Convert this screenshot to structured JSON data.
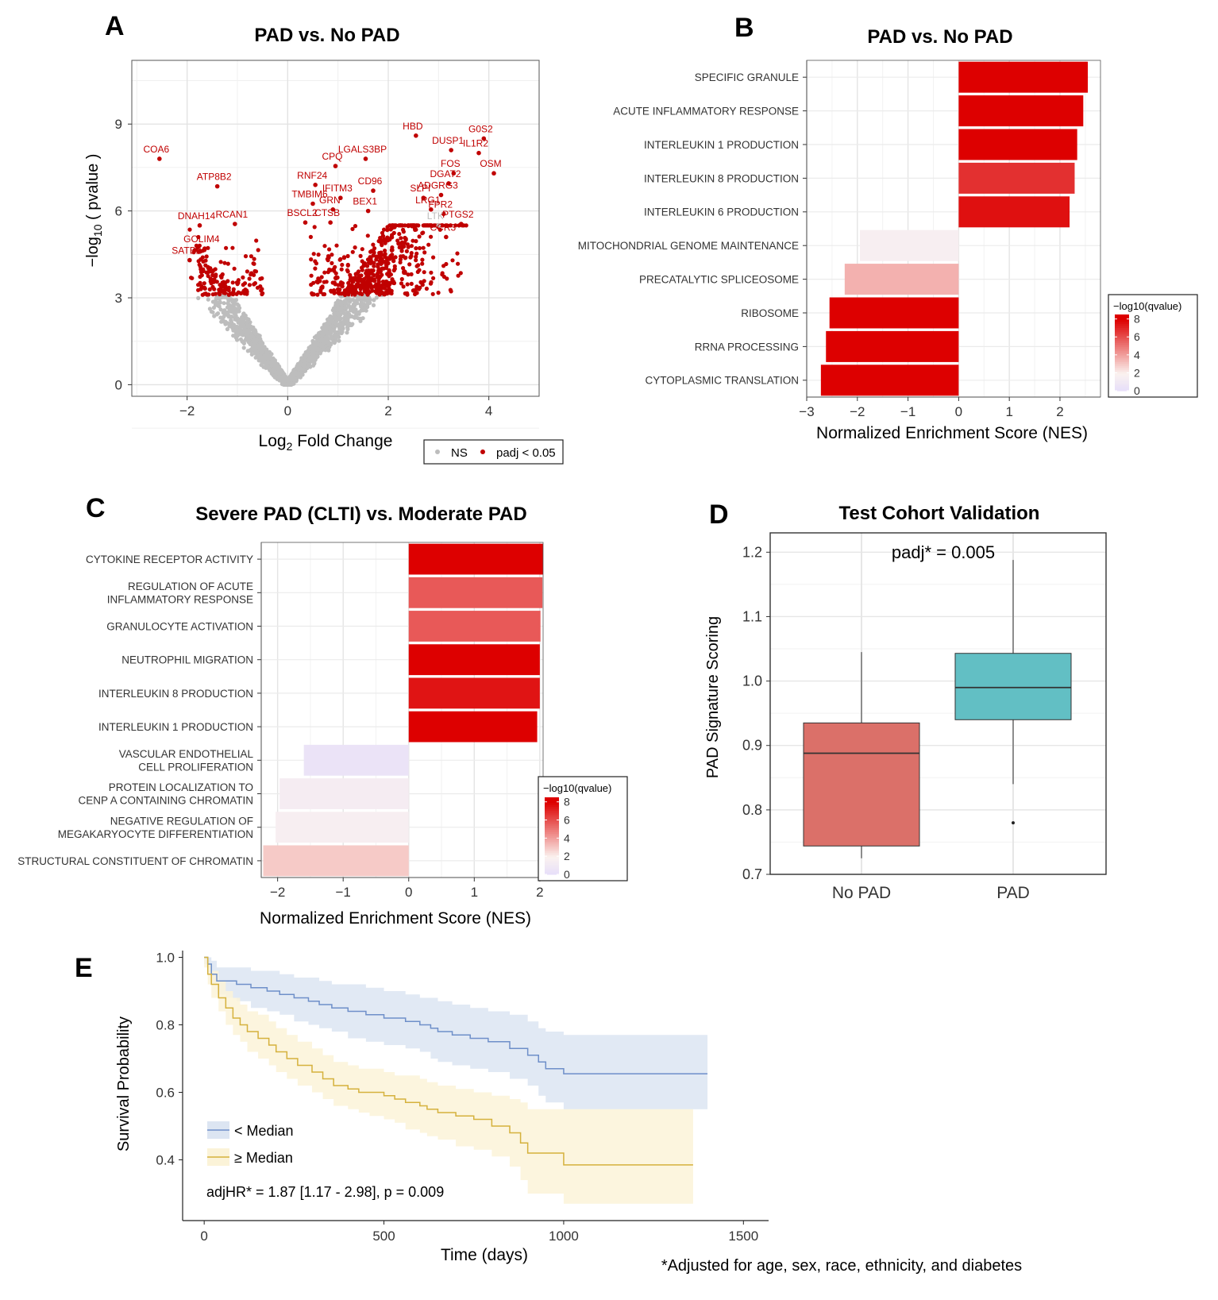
{
  "panels": {
    "A": {
      "letter": "A",
      "chart_data": {
        "type": "scatter",
        "title": "PAD vs. No PAD",
        "xlabel": "Log2 Fold Change",
        "ylabel": "−log10 ( pvalue )",
        "xlim": [
          -3.1,
          5.0
        ],
        "ylim": [
          -0.4,
          11.2
        ],
        "xticks": [
          -2,
          0,
          2,
          4
        ],
        "yticks": [
          0,
          3,
          6,
          9
        ],
        "legend": [
          "NS",
          "padj < 0.05"
        ],
        "colors": {
          "ns": "#bdbdbd",
          "sig": "#c00000"
        },
        "labeled_genes": [
          {
            "gene": "HBD",
            "x": 2.55,
            "y": 8.6
          },
          {
            "gene": "G0S2",
            "x": 3.9,
            "y": 8.5
          },
          {
            "gene": "COA6",
            "x": -2.55,
            "y": 7.8
          },
          {
            "gene": "LGALS3BP",
            "x": 1.55,
            "y": 7.8
          },
          {
            "gene": "DUSP1",
            "x": 3.25,
            "y": 8.1
          },
          {
            "gene": "IL1R2",
            "x": 3.8,
            "y": 8.0
          },
          {
            "gene": "CPQ",
            "x": 0.95,
            "y": 7.55
          },
          {
            "gene": "FOS",
            "x": 3.3,
            "y": 7.3
          },
          {
            "gene": "OSM",
            "x": 4.1,
            "y": 7.3
          },
          {
            "gene": "DGAT2",
            "x": 3.2,
            "y": 6.95
          },
          {
            "gene": "ATP8B2",
            "x": -1.4,
            "y": 6.85
          },
          {
            "gene": "RNF24",
            "x": 0.55,
            "y": 6.9
          },
          {
            "gene": "CD96",
            "x": 1.7,
            "y": 6.7
          },
          {
            "gene": "IFITM3",
            "x": 1.05,
            "y": 6.45
          },
          {
            "gene": "SLPI",
            "x": 2.7,
            "y": 6.45
          },
          {
            "gene": "ADGRG3",
            "x": 3.05,
            "y": 6.55
          },
          {
            "gene": "TMBIM6",
            "x": 0.5,
            "y": 6.25
          },
          {
            "gene": "GRN",
            "x": 0.9,
            "y": 6.05
          },
          {
            "gene": "LRG1",
            "x": 2.85,
            "y": 6.05
          },
          {
            "gene": "FPR2",
            "x": 3.1,
            "y": 5.9
          },
          {
            "gene": "DNAH14",
            "x": -1.75,
            "y": 5.5
          },
          {
            "gene": "RCAN1",
            "x": -1.05,
            "y": 5.55
          },
          {
            "gene": "BEX1",
            "x": 1.6,
            "y": 6.0
          },
          {
            "gene": "CTSB",
            "x": 0.85,
            "y": 5.6
          },
          {
            "gene": "BSCL2",
            "x": 0.35,
            "y": 5.6
          },
          {
            "gene": "LTK",
            "x": 3.0,
            "y": 5.5
          },
          {
            "gene": "PTGS2",
            "x": 3.45,
            "y": 5.55
          },
          {
            "gene": "GOLIM4",
            "x": -1.65,
            "y": 4.7
          },
          {
            "gene": "CCR3",
            "x": 3.15,
            "y": 5.1
          },
          {
            "gene": "SATB2",
            "x": -1.95,
            "y": 4.3
          }
        ]
      }
    },
    "B": {
      "letter": "B",
      "chart_data": {
        "type": "bar",
        "orientation": "horizontal",
        "title": "PAD vs. No PAD",
        "xlabel": "Normalized Enrichment Score (NES)",
        "xlim": [
          -3,
          2.8
        ],
        "xticks": [
          -3,
          -2,
          -1,
          0,
          1,
          2
        ],
        "legend_title": "−log10(qvalue)",
        "legend_ticks": [
          8,
          6,
          4,
          2,
          0
        ],
        "categories": [
          "SPECIFIC GRANULE",
          "ACUTE INFLAMMATORY RESPONSE",
          "INTERLEUKIN 1 PRODUCTION",
          "INTERLEUKIN 8 PRODUCTION",
          "INTERLEUKIN 6 PRODUCTION",
          "MITOCHONDRIAL GENOME MAINTENANCE",
          "PRECATALYTIC SPLICEOSOME",
          "RIBOSOME",
          "RRNA PROCESSING",
          "CYTOPLASMIC TRANSLATION"
        ],
        "values": [
          2.55,
          2.46,
          2.34,
          2.29,
          2.19,
          -1.95,
          -2.25,
          -2.55,
          -2.62,
          -2.72
        ],
        "qvalue_log10": [
          8.5,
          8.2,
          8.3,
          6.8,
          7.6,
          1.6,
          3.6,
          8.3,
          8.3,
          8.3
        ]
      }
    },
    "C": {
      "letter": "C",
      "chart_data": {
        "type": "bar",
        "orientation": "horizontal",
        "title": "Severe PAD (CLTI) vs. Moderate PAD",
        "xlabel": "Normalized Enrichment Score (NES)",
        "xlim": [
          -2.25,
          2.05
        ],
        "xticks": [
          -2,
          -1,
          0,
          1,
          2
        ],
        "legend_title": "−log10(qvalue)",
        "legend_ticks": [
          8,
          6,
          4,
          2,
          0
        ],
        "categories": [
          "CYTOKINE RECEPTOR ACTIVITY",
          "REGULATION OF ACUTE\nINFLAMMATORY RESPONSE",
          "GRANULOCYTE ACTIVATION",
          "NEUTROPHIL MIGRATION",
          "INTERLEUKIN 8 PRODUCTION",
          "INTERLEUKIN 1 PRODUCTION",
          "VASCULAR ENDOTHELIAL\nCELL PROLIFERATION",
          "PROTEIN LOCALIZATION TO\nCENP A CONTAINING CHROMATIN",
          "NEGATIVE REGULATION OF\nMEGAKARYOCYTE DIFFERENTIATION",
          "STRUCTURAL CONSTITUENT OF CHROMATIN"
        ],
        "values": [
          2.05,
          2.04,
          2.01,
          2.0,
          2.0,
          1.96,
          -1.6,
          -1.97,
          -2.03,
          -2.22
        ],
        "qvalue_log10": [
          8.5,
          5.8,
          5.8,
          8.4,
          7.5,
          8.5,
          0.5,
          1.4,
          1.6,
          3.0
        ]
      }
    },
    "D": {
      "letter": "D",
      "chart_data": {
        "type": "box",
        "title": "Test Cohort Validation",
        "ylabel": "PAD Signature Scoring",
        "annotation": "padj* = 0.005",
        "ylim": [
          0.7,
          1.23
        ],
        "yticks": [
          0.7,
          0.8,
          0.9,
          1.0,
          1.1,
          1.2
        ],
        "ytick_labels": [
          "0.7",
          "0.8",
          "0.9",
          "1.0",
          "1.1",
          "1.2"
        ],
        "categories": [
          "No PAD",
          "PAD"
        ],
        "boxes": [
          {
            "group": "No PAD",
            "whisker_low": 0.725,
            "q1": 0.744,
            "median": 0.888,
            "q3": 0.935,
            "whisker_high": 1.045,
            "outliers": [],
            "color": "#db7069"
          },
          {
            "group": "PAD",
            "whisker_low": 0.84,
            "q1": 0.94,
            "median": 0.99,
            "q3": 1.043,
            "whisker_high": 1.188,
            "outliers": [
              0.78
            ],
            "color": "#62bfc4"
          }
        ]
      }
    },
    "E": {
      "letter": "E",
      "chart_data": {
        "type": "line",
        "subtype": "kaplan-meier",
        "xlabel": "Time (days)",
        "ylabel": "Survival Probability",
        "xlim": [
          -60,
          1570
        ],
        "ylim": [
          0.22,
          1.02
        ],
        "xticks": [
          0,
          500,
          1000,
          1500
        ],
        "yticks": [
          0.4,
          0.6,
          0.8,
          1.0
        ],
        "ytick_labels": [
          "0.4",
          "0.6",
          "0.8",
          "1.0"
        ],
        "annotation": "adjHR* = 1.87 [1.17 - 2.98], p = 0.009",
        "footnote": "*Adjusted for age, sex, race, ethnicity, and diabetes",
        "series": [
          {
            "name": "< Median",
            "color": "#6e8fc9",
            "band_color": "#dce5f2",
            "x": [
              0,
              10,
              20,
              35,
              60,
              90,
              130,
              175,
              210,
              250,
              290,
              320,
              355,
              400,
              450,
              500,
              560,
              600,
              630,
              650,
              690,
              740,
              790,
              850,
              900,
              930,
              950,
              1000,
              1400
            ],
            "y": [
              1.0,
              0.98,
              0.95,
              0.93,
              0.93,
              0.92,
              0.91,
              0.9,
              0.89,
              0.88,
              0.87,
              0.86,
              0.85,
              0.84,
              0.83,
              0.82,
              0.81,
              0.8,
              0.79,
              0.78,
              0.77,
              0.76,
              0.75,
              0.73,
              0.71,
              0.69,
              0.67,
              0.655,
              0.655
            ],
            "lower": [
              0.98,
              0.95,
              0.92,
              0.89,
              0.88,
              0.87,
              0.85,
              0.84,
              0.83,
              0.81,
              0.8,
              0.79,
              0.78,
              0.76,
              0.75,
              0.74,
              0.73,
              0.72,
              0.7,
              0.69,
              0.68,
              0.67,
              0.66,
              0.64,
              0.62,
              0.59,
              0.57,
              0.55,
              0.55
            ],
            "upper": [
              1.0,
              1.0,
              0.99,
              0.97,
              0.97,
              0.97,
              0.96,
              0.96,
              0.95,
              0.94,
              0.94,
              0.93,
              0.92,
              0.92,
              0.91,
              0.9,
              0.89,
              0.88,
              0.88,
              0.87,
              0.86,
              0.85,
              0.84,
              0.83,
              0.81,
              0.79,
              0.78,
              0.77,
              0.77
            ]
          },
          {
            "name": "≥ Median",
            "color": "#d5b13c",
            "band_color": "#fbf3d8",
            "x": [
              0,
              10,
              20,
              40,
              60,
              80,
              100,
              120,
              150,
              180,
              200,
              230,
              260,
              300,
              330,
              360,
              400,
              430,
              460,
              500,
              530,
              560,
              600,
              620,
              650,
              700,
              750,
              800,
              850,
              880,
              900,
              1000,
              1360
            ],
            "y": [
              1.0,
              0.95,
              0.92,
              0.88,
              0.85,
              0.82,
              0.8,
              0.78,
              0.76,
              0.74,
              0.72,
              0.7,
              0.68,
              0.66,
              0.64,
              0.62,
              0.61,
              0.6,
              0.6,
              0.59,
              0.58,
              0.57,
              0.56,
              0.55,
              0.54,
              0.53,
              0.52,
              0.5,
              0.48,
              0.45,
              0.42,
              0.385,
              0.385
            ],
            "lower": [
              0.97,
              0.92,
              0.88,
              0.84,
              0.8,
              0.77,
              0.75,
              0.72,
              0.7,
              0.68,
              0.66,
              0.64,
              0.62,
              0.6,
              0.58,
              0.56,
              0.55,
              0.54,
              0.53,
              0.52,
              0.51,
              0.49,
              0.48,
              0.47,
              0.46,
              0.44,
              0.43,
              0.41,
              0.38,
              0.34,
              0.3,
              0.27,
              0.27
            ],
            "upper": [
              1.0,
              0.98,
              0.96,
              0.93,
              0.9,
              0.88,
              0.86,
              0.84,
              0.83,
              0.81,
              0.79,
              0.77,
              0.75,
              0.73,
              0.71,
              0.69,
              0.68,
              0.67,
              0.67,
              0.66,
              0.65,
              0.65,
              0.64,
              0.63,
              0.62,
              0.61,
              0.6,
              0.59,
              0.58,
              0.57,
              0.55,
              0.55,
              0.55
            ]
          }
        ]
      }
    }
  }
}
